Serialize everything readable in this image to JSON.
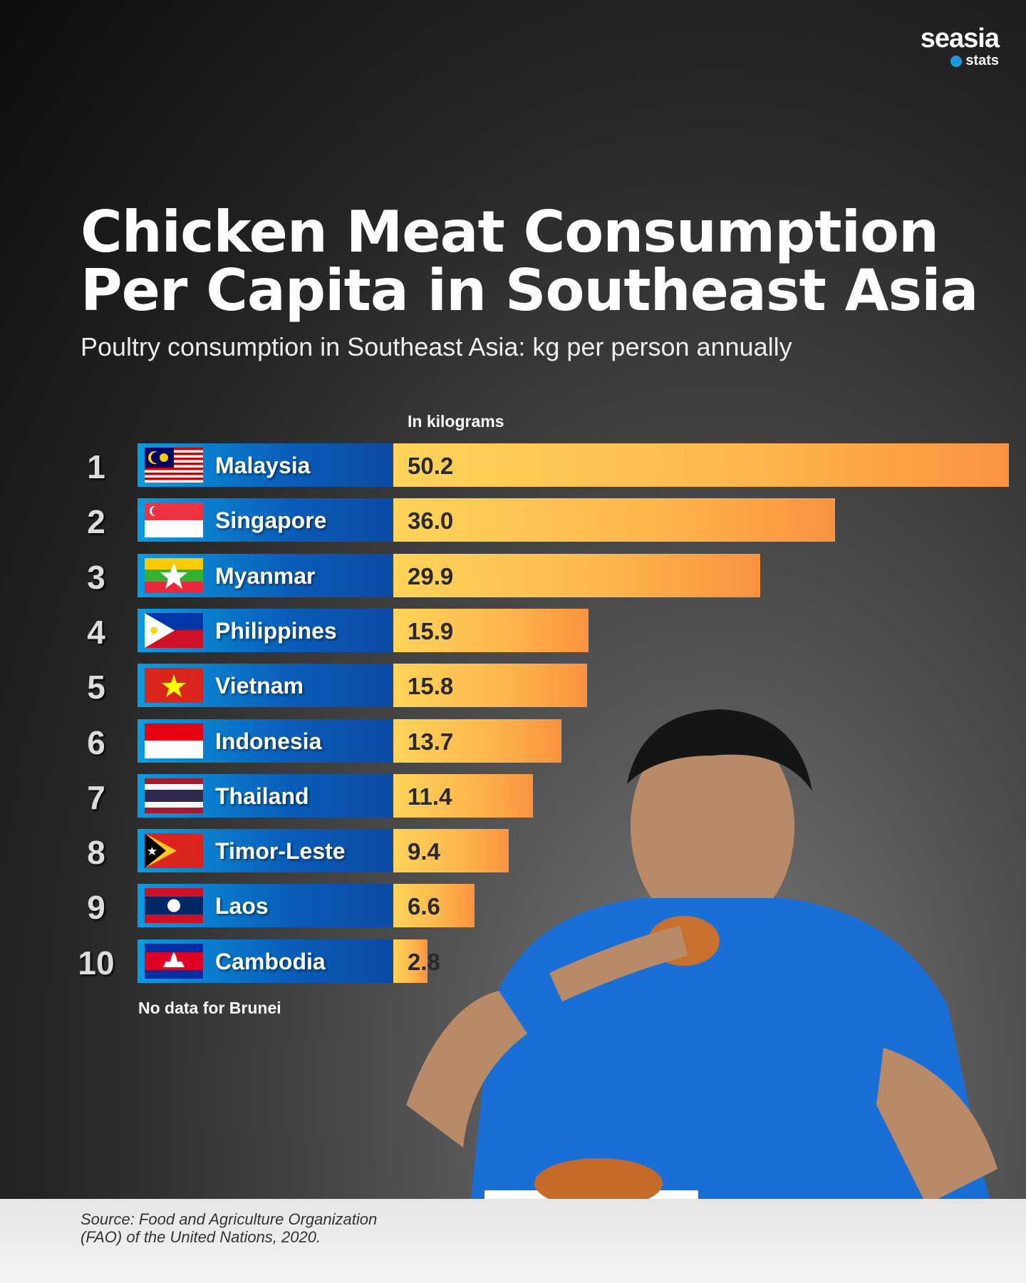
{
  "brand": {
    "name": "seasia",
    "sub": "stats"
  },
  "title_lines": [
    "Chicken Meat Consumption",
    "Per Capita in Southeast Asia"
  ],
  "subtitle": "Poultry consumption in Southeast Asia: kg per person annually",
  "unit_label": "In kilograms",
  "note": "No data for Brunei",
  "source_lines": [
    "Source: Food and Agriculture Organization",
    "(FAO) of the United Nations, 2020."
  ],
  "chart_data": {
    "type": "bar",
    "orientation": "horizontal",
    "ylabel": "In kilograms",
    "ranks": [
      "1",
      "2",
      "3",
      "4",
      "5",
      "6",
      "7",
      "8",
      "9",
      "10"
    ],
    "categories": [
      "Malaysia",
      "Singapore",
      "Myanmar",
      "Philippines",
      "Vietnam",
      "Indonesia",
      "Thailand",
      "Timor-Leste",
      "Laos",
      "Cambodia"
    ],
    "values": [
      50.2,
      36.0,
      29.9,
      15.9,
      15.8,
      13.7,
      11.4,
      9.4,
      6.6,
      2.8
    ],
    "labels": [
      "50.2",
      "36.0",
      "29.9",
      "15.9",
      "15.8",
      "13.7",
      "11.4",
      "9.4",
      "6.6",
      "2.8"
    ],
    "colors": {
      "label_band": "#0a6cc4",
      "bar_start": "#ffd45a",
      "bar_end": "#fb9240"
    }
  }
}
